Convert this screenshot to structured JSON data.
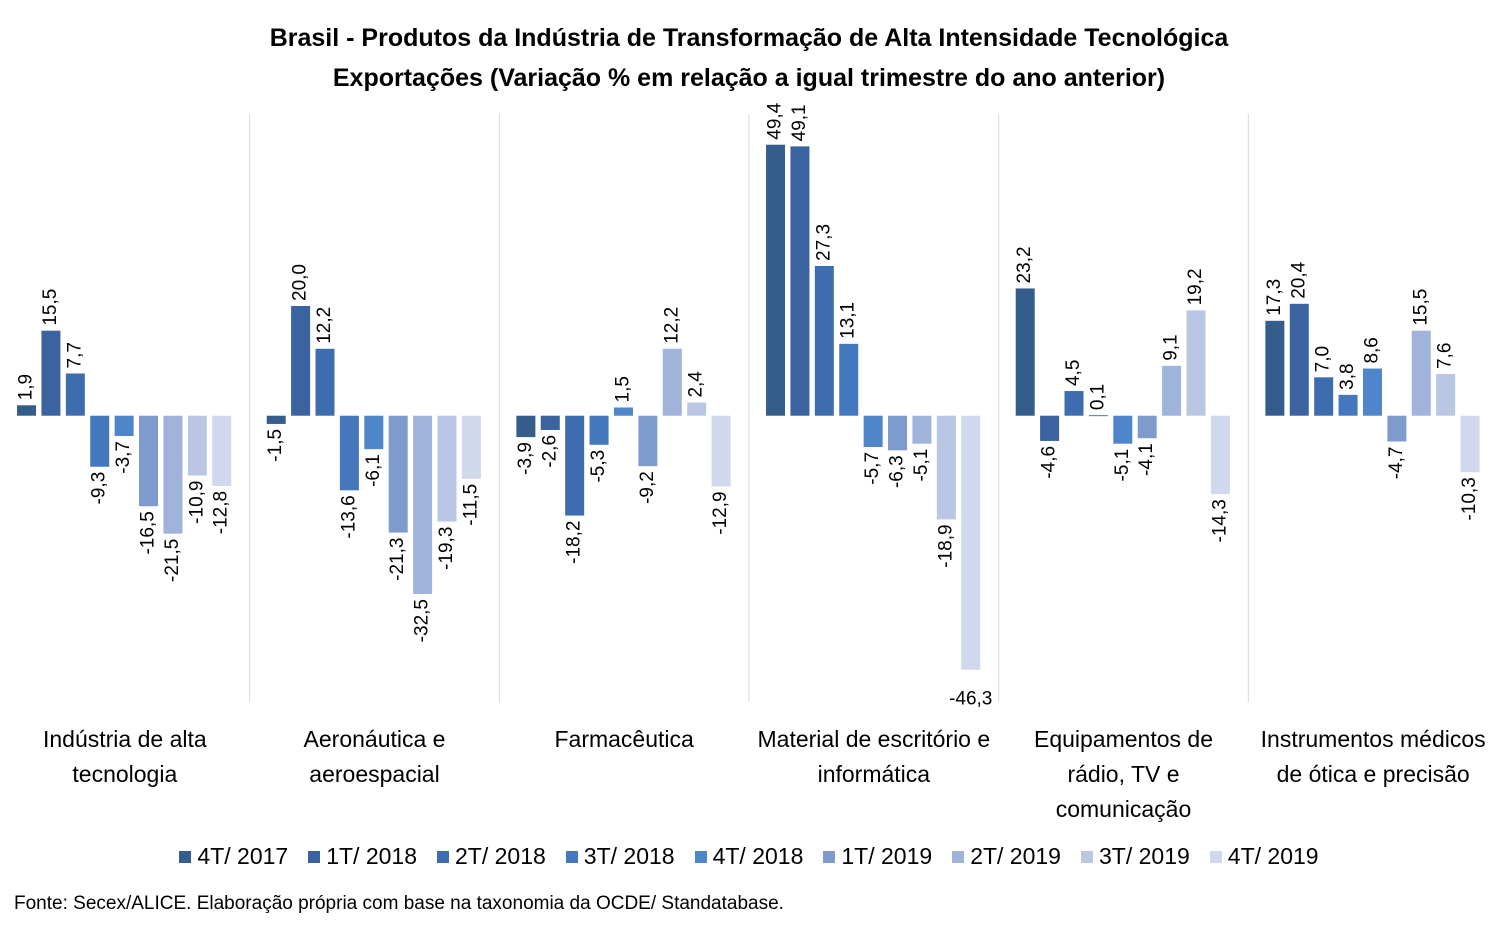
{
  "chart_data": {
    "type": "bar",
    "title": "Brasil - Produtos da Indústria de Transformação de Alta Intensidade Tecnológica",
    "subtitle": "Exportações (Variação % em relação a igual trimestre do ano anterior)",
    "source": "Fonte: Secex/ALICE. Elaboração própria com base na taxonomia da OCDE/ Standatabase.",
    "categories": [
      "Indústria de alta tecnologia",
      "Aeronáutica e aeroespacial",
      "Farmacêutica",
      "Material de escritório e informática",
      "Equipamentos de rádio, TV e comunicação",
      "Instrumentos médicos de ótica e precisão"
    ],
    "ylim": [
      -50,
      55
    ],
    "legend": "bottom",
    "series": [
      {
        "name": "4T/ 2017",
        "color": "#355d8c",
        "values": [
          1.9,
          -1.5,
          -3.9,
          49.4,
          23.2,
          17.3
        ],
        "value_labels": [
          "1,9",
          "-1,5",
          "-3,9",
          "49,4",
          "23,2",
          "17,3"
        ]
      },
      {
        "name": "1T/ 2018",
        "color": "#3a63a0",
        "values": [
          15.5,
          20.0,
          -2.6,
          49.1,
          -4.6,
          20.4
        ],
        "value_labels": [
          "15,5",
          "20,0",
          "-2,6",
          "49,1",
          "-4,6",
          "20,4"
        ]
      },
      {
        "name": "2T/ 2018",
        "color": "#3e6daf",
        "values": [
          7.7,
          12.2,
          -18.2,
          27.3,
          4.5,
          7.0
        ],
        "value_labels": [
          "7,7",
          "12,2",
          "-18,2",
          "27,3",
          "4,5",
          "7,0"
        ]
      },
      {
        "name": "3T/ 2018",
        "color": "#4477bd",
        "values": [
          -9.3,
          -13.6,
          -5.3,
          13.1,
          0.1,
          3.8
        ],
        "value_labels": [
          "-9,3",
          "-13,6",
          "-5,3",
          "13,1",
          "0,1",
          "3,8"
        ]
      },
      {
        "name": "4T/ 2018",
        "color": "#4f85c9",
        "values": [
          -3.7,
          -6.1,
          1.5,
          -5.7,
          -5.1,
          8.6
        ],
        "value_labels": [
          "-3,7",
          "-6,1",
          "1,5",
          "-5,7",
          "-5,1",
          "8,6"
        ]
      },
      {
        "name": "1T/ 2019",
        "color": "#7f9bcd",
        "values": [
          -16.5,
          -21.3,
          -9.2,
          -6.3,
          -4.1,
          -4.7
        ],
        "value_labels": [
          "-16,5",
          "-21,3",
          "-9,2",
          "-6,3",
          "-4,1",
          "-4,7"
        ]
      },
      {
        "name": "2T/ 2019",
        "color": "#a0b3db",
        "values": [
          -21.5,
          -32.5,
          12.2,
          -5.1,
          9.1,
          15.5
        ],
        "value_labels": [
          "-21,5",
          "-32,5",
          "12,2",
          "-5,1",
          "9,1",
          "15,5"
        ]
      },
      {
        "name": "3T/ 2019",
        "color": "#b9c6e4",
        "values": [
          -10.9,
          -19.3,
          2.4,
          -18.9,
          19.2,
          7.6
        ],
        "value_labels": [
          "-10,9",
          "-19,3",
          "2,4",
          "-18,9",
          "19,2",
          "7,6"
        ]
      },
      {
        "name": "4T/ 2019",
        "color": "#cfd8ed",
        "values": [
          -12.8,
          -11.5,
          -12.9,
          -46.3,
          -14.3,
          -10.3
        ],
        "value_labels": [
          "-12,8",
          "-11,5",
          "-12,9",
          "-46,3",
          "-14,3",
          "-10,3"
        ]
      }
    ]
  }
}
